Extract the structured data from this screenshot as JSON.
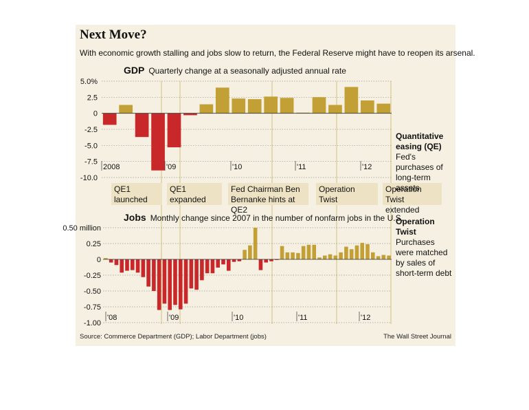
{
  "headline": "Next Move?",
  "subhead": "With economic growth stalling and jobs slow to return, the Federal Reserve might have to reopen its arsenal.",
  "gdp": {
    "title": "GDP",
    "subtitle": "Quarterly change at a seasonally adjusted annual rate"
  },
  "jobs": {
    "title": "Jobs",
    "subtitle": "Monthly change since 2007 in the number of nonfarm jobs in the U.S."
  },
  "events": [
    {
      "label": "QE1 launched"
    },
    {
      "label": "QE1 expanded"
    },
    {
      "label": "Fed Chairman Ben Bernanke hints at QE2"
    },
    {
      "label": "Operation Twist"
    },
    {
      "label": "Operation Twist extended"
    }
  ],
  "notes": {
    "qe": {
      "title": "Quantitative easing (QE)",
      "text": "Fed's purchases of long-term assets"
    },
    "twist": {
      "title": "Operation Twist",
      "text": "Purchases were matched by sales of short-term debt"
    }
  },
  "source": "Source: Commerce Department (GDP); Labor Department (jobs)",
  "credit": "The Wall Street Journal",
  "colors": {
    "positive": "#c3a036",
    "negative": "#c8282a",
    "event_line": "#ddd09f",
    "background": "#f5f0e1"
  },
  "chart_data": [
    {
      "type": "bar",
      "title": "GDP",
      "subtitle": "Quarterly change at a seasonally adjusted annual rate",
      "x_tick_labels": [
        "2008",
        "'09",
        "'10",
        "'11",
        "'12"
      ],
      "y_ticks": [
        "5.0%",
        "2.5",
        "0",
        "-2.5",
        "-5.0",
        "-7.5",
        "-10.0"
      ],
      "ylim": [
        -10,
        5
      ],
      "values": [
        -1.8,
        1.3,
        -3.7,
        -8.9,
        -5.3,
        -0.3,
        1.4,
        4.0,
        2.3,
        2.2,
        2.6,
        2.4,
        0.1,
        2.5,
        1.3,
        4.1,
        2.0,
        1.5
      ]
    },
    {
      "type": "bar",
      "title": "Jobs",
      "subtitle": "Monthly change since 2007 in the number of nonfarm jobs in the U.S.",
      "x_tick_labels": [
        "'08",
        "'09",
        "'10",
        "'11",
        "'12"
      ],
      "y_ticks": [
        "0.50 million",
        "0.25",
        "0",
        "-0.25",
        "-0.50",
        "-0.75",
        "-1.00"
      ],
      "ylim": [
        -1.0,
        0.5
      ],
      "values": [
        0.02,
        -0.05,
        -0.09,
        -0.21,
        -0.18,
        -0.17,
        -0.21,
        -0.28,
        -0.43,
        -0.5,
        -0.8,
        -0.7,
        -0.8,
        -0.72,
        -0.79,
        -0.7,
        -0.46,
        -0.48,
        -0.33,
        -0.22,
        -0.22,
        -0.13,
        -0.08,
        -0.18,
        -0.04,
        -0.03,
        0.15,
        0.22,
        0.5,
        -0.17,
        -0.05,
        -0.03,
        -0.01,
        0.21,
        0.11,
        0.11,
        0.1,
        0.21,
        0.23,
        0.23,
        0.03,
        0.06,
        0.08,
        0.06,
        0.11,
        0.2,
        0.16,
        0.22,
        0.26,
        0.24,
        0.11,
        0.05,
        0.07,
        0.06
      ]
    }
  ]
}
